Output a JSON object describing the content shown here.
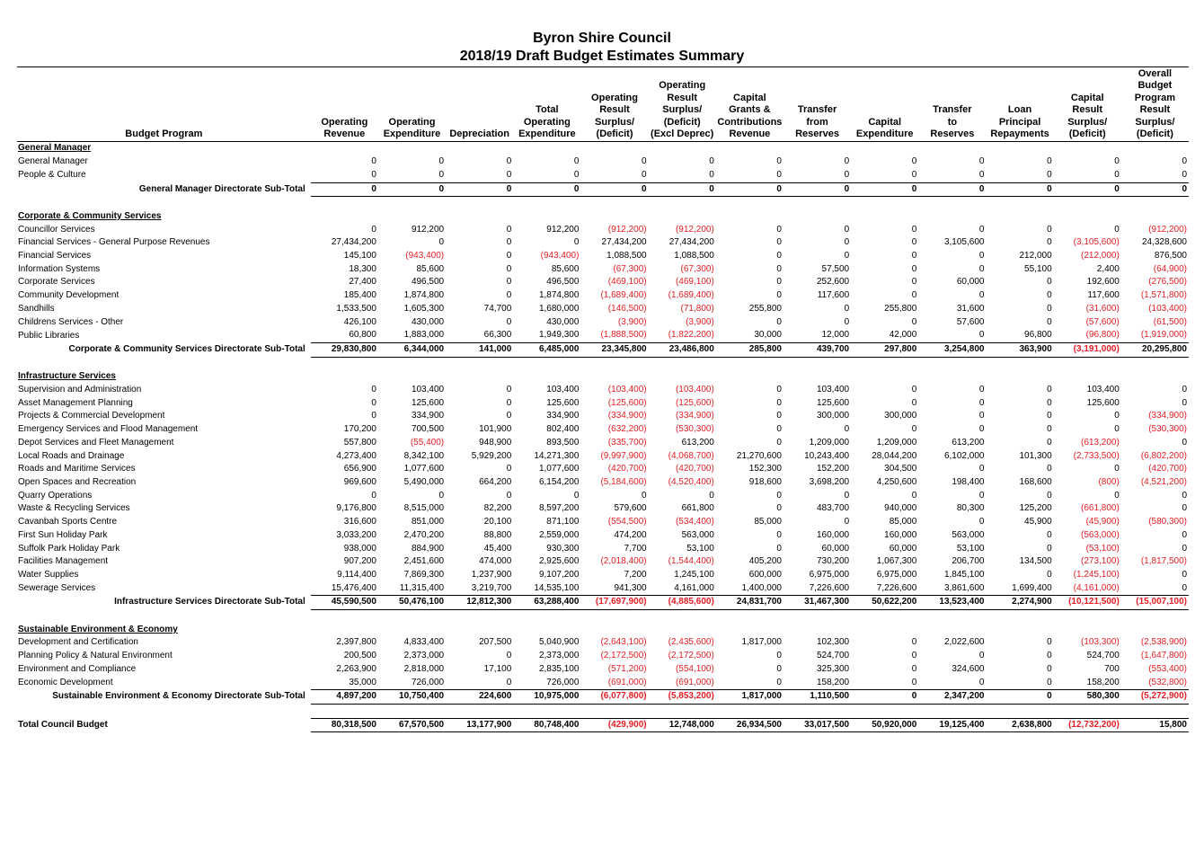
{
  "title": "Byron Shire Council",
  "subtitle": "2018/19 Draft Budget Estimates Summary",
  "headers": [
    [
      "Budget Program"
    ],
    [
      "Operating",
      "Revenue"
    ],
    [
      "Operating",
      "Expenditure"
    ],
    [
      "Depreciation"
    ],
    [
      "Total",
      "Operating",
      "Expenditure"
    ],
    [
      "Operating",
      "Result",
      "Surplus/",
      "(Deficit)"
    ],
    [
      "Operating",
      "Result",
      "Surplus/",
      "(Deficit)",
      "(Excl Deprec)"
    ],
    [
      "Capital",
      "Grants &",
      "Contributions",
      "Revenue"
    ],
    [
      "Transfer",
      "from",
      "Reserves"
    ],
    [
      "Capital",
      "Expenditure"
    ],
    [
      "Transfer",
      "to",
      "Reserves"
    ],
    [
      "Loan",
      "Principal",
      "Repayments"
    ],
    [
      "Capital",
      "Result",
      "Surplus/",
      "(Deficit)"
    ],
    [
      "Overall",
      "Budget",
      "Program",
      "Result",
      "Surplus/",
      "(Deficit)"
    ]
  ],
  "rows": [
    {
      "type": "sec",
      "label": "General Manager"
    },
    {
      "type": "row",
      "label": "General Manager",
      "v": [
        "0",
        "0",
        "0",
        "0",
        "0",
        "0",
        "0",
        "0",
        "0",
        "0",
        "0",
        "0",
        "0"
      ]
    },
    {
      "type": "row",
      "label": "People & Culture",
      "v": [
        "0",
        "0",
        "0",
        "0",
        "0",
        "0",
        "0",
        "0",
        "0",
        "0",
        "0",
        "0",
        "0"
      ]
    },
    {
      "type": "sub",
      "label": "General Manager Directorate Sub-Total",
      "v": [
        "0",
        "0",
        "0",
        "0",
        "0",
        "0",
        "0",
        "0",
        "0",
        "0",
        "0",
        "0",
        "0"
      ]
    },
    {
      "type": "gap"
    },
    {
      "type": "sec",
      "label": "Corporate & Community Services"
    },
    {
      "type": "row",
      "label": "Councillor Services",
      "v": [
        "0",
        "912,200",
        "0",
        "912,200",
        "(912,200)",
        "(912,200)",
        "0",
        "0",
        "0",
        "0",
        "0",
        "0",
        "(912,200)"
      ]
    },
    {
      "type": "row",
      "label": "Financial Services - General Purpose Revenues",
      "v": [
        "27,434,200",
        "0",
        "0",
        "0",
        "27,434,200",
        "27,434,200",
        "0",
        "0",
        "0",
        "3,105,600",
        "0",
        "(3,105,600)",
        "24,328,600"
      ]
    },
    {
      "type": "row",
      "label": "Financial Services",
      "v": [
        "145,100",
        "(943,400)",
        "0",
        "(943,400)",
        "1,088,500",
        "1,088,500",
        "0",
        "0",
        "0",
        "0",
        "212,000",
        "(212,000)",
        "876,500"
      ]
    },
    {
      "type": "row",
      "label": "Information Systems",
      "v": [
        "18,300",
        "85,600",
        "0",
        "85,600",
        "(67,300)",
        "(67,300)",
        "0",
        "57,500",
        "0",
        "0",
        "55,100",
        "2,400",
        "(64,900)"
      ]
    },
    {
      "type": "row",
      "label": "Corporate Services",
      "v": [
        "27,400",
        "496,500",
        "0",
        "496,500",
        "(469,100)",
        "(469,100)",
        "0",
        "252,600",
        "0",
        "60,000",
        "0",
        "192,600",
        "(276,500)"
      ]
    },
    {
      "type": "row",
      "label": "Community Development",
      "v": [
        "185,400",
        "1,874,800",
        "0",
        "1,874,800",
        "(1,689,400)",
        "(1,689,400)",
        "0",
        "117,600",
        "0",
        "0",
        "0",
        "117,600",
        "(1,571,800)"
      ]
    },
    {
      "type": "row",
      "label": "Sandhills",
      "v": [
        "1,533,500",
        "1,605,300",
        "74,700",
        "1,680,000",
        "(146,500)",
        "(71,800)",
        "255,800",
        "0",
        "255,800",
        "31,600",
        "0",
        "(31,600)",
        "(103,400)"
      ]
    },
    {
      "type": "row",
      "label": "Childrens Services - Other",
      "v": [
        "426,100",
        "430,000",
        "0",
        "430,000",
        "(3,900)",
        "(3,900)",
        "0",
        "0",
        "0",
        "57,600",
        "0",
        "(57,600)",
        "(61,500)"
      ]
    },
    {
      "type": "row",
      "label": "Public Libraries",
      "v": [
        "60,800",
        "1,883,000",
        "66,300",
        "1,949,300",
        "(1,888,500)",
        "(1,822,200)",
        "30,000",
        "12,000",
        "42,000",
        "0",
        "96,800",
        "(96,800)",
        "(1,919,000)"
      ]
    },
    {
      "type": "sub",
      "label": "Corporate & Community Services Directorate Sub-Total",
      "v": [
        "29,830,800",
        "6,344,000",
        "141,000",
        "6,485,000",
        "23,345,800",
        "23,486,800",
        "285,800",
        "439,700",
        "297,800",
        "3,254,800",
        "363,900",
        "(3,191,000)",
        "20,295,800"
      ]
    },
    {
      "type": "gap"
    },
    {
      "type": "sec",
      "label": "Infrastructure Services"
    },
    {
      "type": "row",
      "label": "Supervision and Administration",
      "v": [
        "0",
        "103,400",
        "0",
        "103,400",
        "(103,400)",
        "(103,400)",
        "0",
        "103,400",
        "0",
        "0",
        "0",
        "103,400",
        "0"
      ]
    },
    {
      "type": "row",
      "label": "Asset Management Planning",
      "v": [
        "0",
        "125,600",
        "0",
        "125,600",
        "(125,600)",
        "(125,600)",
        "0",
        "125,600",
        "0",
        "0",
        "0",
        "125,600",
        "0"
      ]
    },
    {
      "type": "row",
      "label": "Projects & Commercial Development",
      "v": [
        "0",
        "334,900",
        "0",
        "334,900",
        "(334,900)",
        "(334,900)",
        "0",
        "300,000",
        "300,000",
        "0",
        "0",
        "0",
        "(334,900)"
      ]
    },
    {
      "type": "row",
      "label": "Emergency Services and Flood Management",
      "v": [
        "170,200",
        "700,500",
        "101,900",
        "802,400",
        "(632,200)",
        "(530,300)",
        "0",
        "0",
        "0",
        "0",
        "0",
        "0",
        "(530,300)"
      ]
    },
    {
      "type": "row",
      "label": "Depot Services and Fleet Management",
      "v": [
        "557,800",
        "(55,400)",
        "948,900",
        "893,500",
        "(335,700)",
        "613,200",
        "0",
        "1,209,000",
        "1,209,000",
        "613,200",
        "0",
        "(613,200)",
        "0"
      ]
    },
    {
      "type": "row",
      "label": "Local Roads and Drainage",
      "v": [
        "4,273,400",
        "8,342,100",
        "5,929,200",
        "14,271,300",
        "(9,997,900)",
        "(4,068,700)",
        "21,270,600",
        "10,243,400",
        "28,044,200",
        "6,102,000",
        "101,300",
        "(2,733,500)",
        "(6,802,200)"
      ]
    },
    {
      "type": "row",
      "label": "Roads and Maritime Services",
      "v": [
        "656,900",
        "1,077,600",
        "0",
        "1,077,600",
        "(420,700)",
        "(420,700)",
        "152,300",
        "152,200",
        "304,500",
        "0",
        "0",
        "0",
        "(420,700)"
      ]
    },
    {
      "type": "row",
      "label": "Open Spaces and Recreation",
      "v": [
        "969,600",
        "5,490,000",
        "664,200",
        "6,154,200",
        "(5,184,600)",
        "(4,520,400)",
        "918,600",
        "3,698,200",
        "4,250,600",
        "198,400",
        "168,600",
        "(800)",
        "(4,521,200)"
      ]
    },
    {
      "type": "row",
      "label": "Quarry Operations",
      "v": [
        "0",
        "0",
        "0",
        "0",
        "0",
        "0",
        "0",
        "0",
        "0",
        "0",
        "0",
        "0",
        "0"
      ]
    },
    {
      "type": "row",
      "label": "Waste & Recycling Services",
      "v": [
        "9,176,800",
        "8,515,000",
        "82,200",
        "8,597,200",
        "579,600",
        "661,800",
        "0",
        "483,700",
        "940,000",
        "80,300",
        "125,200",
        "(661,800)",
        "0"
      ]
    },
    {
      "type": "row",
      "label": "Cavanbah Sports Centre",
      "v": [
        "316,600",
        "851,000",
        "20,100",
        "871,100",
        "(554,500)",
        "(534,400)",
        "85,000",
        "0",
        "85,000",
        "0",
        "45,900",
        "(45,900)",
        "(580,300)"
      ]
    },
    {
      "type": "row",
      "label": "First Sun Holiday Park",
      "v": [
        "3,033,200",
        "2,470,200",
        "88,800",
        "2,559,000",
        "474,200",
        "563,000",
        "0",
        "160,000",
        "160,000",
        "563,000",
        "0",
        "(563,000)",
        "0"
      ]
    },
    {
      "type": "row",
      "label": "Suffolk Park Holiday Park",
      "v": [
        "938,000",
        "884,900",
        "45,400",
        "930,300",
        "7,700",
        "53,100",
        "0",
        "60,000",
        "60,000",
        "53,100",
        "0",
        "(53,100)",
        "0"
      ]
    },
    {
      "type": "row",
      "label": "Facilities Management",
      "v": [
        "907,200",
        "2,451,600",
        "474,000",
        "2,925,600",
        "(2,018,400)",
        "(1,544,400)",
        "405,200",
        "730,200",
        "1,067,300",
        "206,700",
        "134,500",
        "(273,100)",
        "(1,817,500)"
      ]
    },
    {
      "type": "row",
      "label": "Water Supplies",
      "v": [
        "9,114,400",
        "7,869,300",
        "1,237,900",
        "9,107,200",
        "7,200",
        "1,245,100",
        "600,000",
        "6,975,000",
        "6,975,000",
        "1,845,100",
        "0",
        "(1,245,100)",
        "0"
      ]
    },
    {
      "type": "row",
      "label": "Sewerage Services",
      "v": [
        "15,476,400",
        "11,315,400",
        "3,219,700",
        "14,535,100",
        "941,300",
        "4,161,000",
        "1,400,000",
        "7,226,600",
        "7,226,600",
        "3,861,600",
        "1,699,400",
        "(4,161,000)",
        "0"
      ]
    },
    {
      "type": "sub",
      "label": "Infrastructure Services Directorate Sub-Total",
      "v": [
        "45,590,500",
        "50,476,100",
        "12,812,300",
        "63,288,400",
        "(17,697,900)",
        "(4,885,600)",
        "24,831,700",
        "31,467,300",
        "50,622,200",
        "13,523,400",
        "2,274,900",
        "(10,121,500)",
        "(15,007,100)"
      ]
    },
    {
      "type": "gap"
    },
    {
      "type": "sec",
      "label": "Sustainable Environment & Economy"
    },
    {
      "type": "row",
      "label": "Development and Certification",
      "v": [
        "2,397,800",
        "4,833,400",
        "207,500",
        "5,040,900",
        "(2,643,100)",
        "(2,435,600)",
        "1,817,000",
        "102,300",
        "0",
        "2,022,600",
        "0",
        "(103,300)",
        "(2,538,900)"
      ]
    },
    {
      "type": "row",
      "label": "Planning Policy & Natural Environment",
      "v": [
        "200,500",
        "2,373,000",
        "0",
        "2,373,000",
        "(2,172,500)",
        "(2,172,500)",
        "0",
        "524,700",
        "0",
        "0",
        "0",
        "524,700",
        "(1,647,800)"
      ]
    },
    {
      "type": "row",
      "label": "Environment and Compliance",
      "v": [
        "2,263,900",
        "2,818,000",
        "17,100",
        "2,835,100",
        "(571,200)",
        "(554,100)",
        "0",
        "325,300",
        "0",
        "324,600",
        "0",
        "700",
        "(553,400)"
      ]
    },
    {
      "type": "row",
      "label": "Economic Development",
      "v": [
        "35,000",
        "726,000",
        "0",
        "726,000",
        "(691,000)",
        "(691,000)",
        "0",
        "158,200",
        "0",
        "0",
        "0",
        "158,200",
        "(532,800)"
      ]
    },
    {
      "type": "sub",
      "label": "Sustainable Environment & Economy Directorate Sub-Total",
      "v": [
        "4,897,200",
        "10,750,400",
        "224,600",
        "10,975,000",
        "(6,077,800)",
        "(5,853,200)",
        "1,817,000",
        "1,110,500",
        "0",
        "2,347,200",
        "0",
        "580,300",
        "(5,272,900)"
      ]
    },
    {
      "type": "gap"
    },
    {
      "type": "tot",
      "label": "Total Council Budget",
      "v": [
        "80,318,500",
        "67,570,500",
        "13,177,900",
        "80,748,400",
        "(429,900)",
        "12,748,000",
        "26,934,500",
        "33,017,500",
        "50,920,000",
        "19,125,400",
        "2,638,800",
        "(12,732,200)",
        "15,800"
      ]
    }
  ],
  "colors": {
    "negative": "#e31e24",
    "text": "#000000"
  }
}
